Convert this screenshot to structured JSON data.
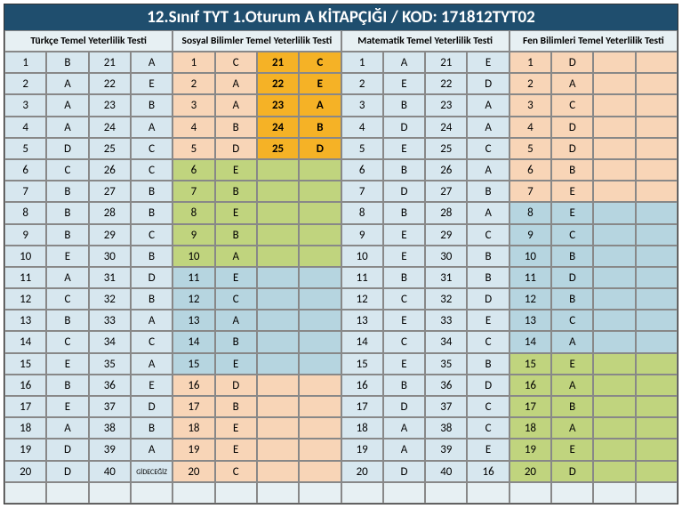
{
  "title": "12.Sınıf TYT 1.Oturum A KİTAPÇIĞI / KOD: 171812TYT02",
  "styling": {
    "header_bg": "#1f4e6e",
    "header_color": "#ffffff",
    "header_fontsize": 19,
    "section_header_bg": "#e7f0f3",
    "section_header_fontsize": 11.5,
    "cell_height": 24.2,
    "cell_fontsize": 13,
    "border_color": "#888888",
    "colors": {
      "lblue": "#d7e7ef",
      "blue": "#b6d5e0",
      "peach": "#f8d5b7",
      "green": "#c0d47e",
      "orange": "#f5b226",
      "empty": "#e7f0f3"
    }
  },
  "sections": [
    "Türkçe Temel Yeterlilik Testi",
    "Sosyal Bilimler Temel Yeterlilik Testi",
    "Matematik Temel Yeterlilik Testi",
    "Fen Bilimleri Temel Yeterlilik Testi"
  ],
  "footer_text": "GİDECEĞİZ",
  "data": {
    "turkce": {
      "left": {
        "nums": [
          1,
          2,
          3,
          4,
          5,
          6,
          7,
          8,
          9,
          10,
          11,
          12,
          13,
          14,
          15,
          16,
          17,
          18,
          19,
          20
        ],
        "ans": [
          "B",
          "A",
          "A",
          "A",
          "D",
          "C",
          "B",
          "B",
          "B",
          "E",
          "A",
          "C",
          "B",
          "C",
          "E",
          "B",
          "E",
          "A",
          "D",
          "D"
        ]
      },
      "right": {
        "nums": [
          21,
          22,
          23,
          24,
          25,
          26,
          27,
          28,
          29,
          30,
          31,
          32,
          33,
          34,
          35,
          36,
          37,
          38,
          39,
          40
        ],
        "ans": [
          "A",
          "E",
          "B",
          "A",
          "C",
          "C",
          "B",
          "B",
          "C",
          "B",
          "D",
          "B",
          "A",
          "C",
          "A",
          "E",
          "D",
          "B",
          "A",
          "GİDECEĞİZ"
        ]
      }
    },
    "sosyal": {
      "left": {
        "nums": [
          1,
          2,
          3,
          4,
          5,
          6,
          7,
          8,
          9,
          10,
          11,
          12,
          13,
          14,
          15,
          16,
          17,
          18,
          19,
          20
        ],
        "ans": [
          "C",
          "A",
          "A",
          "B",
          "D",
          "E",
          "B",
          "E",
          "B",
          "A",
          "E",
          "C",
          "A",
          "B",
          "E",
          "D",
          "B",
          "E",
          "E",
          "C"
        ],
        "colorBlocks": [
          {
            "range": [
              1,
              5
            ],
            "c": "peach"
          },
          {
            "range": [
              6,
              10
            ],
            "c": "green"
          },
          {
            "range": [
              11,
              15
            ],
            "c": "blue"
          },
          {
            "range": [
              16,
              20
            ],
            "c": "peach"
          }
        ]
      },
      "right": {
        "nums": [
          21,
          22,
          23,
          24,
          25
        ],
        "ans": [
          "C",
          "E",
          "A",
          "B",
          "D"
        ],
        "colorBlocks": [
          {
            "range": [
              1,
              5
            ],
            "c": "orange"
          }
        ]
      }
    },
    "matematik": {
      "left": {
        "nums": [
          1,
          2,
          3,
          4,
          5,
          6,
          7,
          8,
          9,
          10,
          11,
          12,
          13,
          14,
          15,
          16,
          17,
          18,
          19,
          20
        ],
        "ans": [
          "A",
          "E",
          "B",
          "D",
          "E",
          "B",
          "D",
          "B",
          "E",
          "E",
          "B",
          "C",
          "E",
          "C",
          "E",
          "B",
          "D",
          "A",
          "A",
          "D"
        ]
      },
      "right": {
        "nums": [
          21,
          22,
          23,
          24,
          25,
          26,
          27,
          28,
          29,
          30,
          31,
          32,
          33,
          34,
          35,
          36,
          37,
          38,
          39,
          40
        ],
        "ans": [
          "E",
          "D",
          "A",
          "A",
          "C",
          "A",
          "B",
          "A",
          "C",
          "B",
          "B",
          "D",
          "E",
          "C",
          "B",
          "D",
          "C",
          "C",
          "E",
          "16"
        ]
      }
    },
    "fen": {
      "left": {
        "nums": [
          1,
          2,
          3,
          4,
          5,
          6,
          7,
          8,
          9,
          10,
          11,
          12,
          13,
          14,
          15,
          16,
          17,
          18,
          19,
          20
        ],
        "ans": [
          "D",
          "A",
          "C",
          "D",
          "D",
          "B",
          "E",
          "E",
          "C",
          "B",
          "D",
          "B",
          "C",
          "A",
          "E",
          "A",
          "B",
          "A",
          "E",
          "D"
        ],
        "colorBlocks": [
          {
            "range": [
              1,
              7
            ],
            "c": "peach"
          },
          {
            "range": [
              8,
              14
            ],
            "c": "blue"
          },
          {
            "range": [
              15,
              20
            ],
            "c": "green"
          }
        ]
      }
    }
  }
}
